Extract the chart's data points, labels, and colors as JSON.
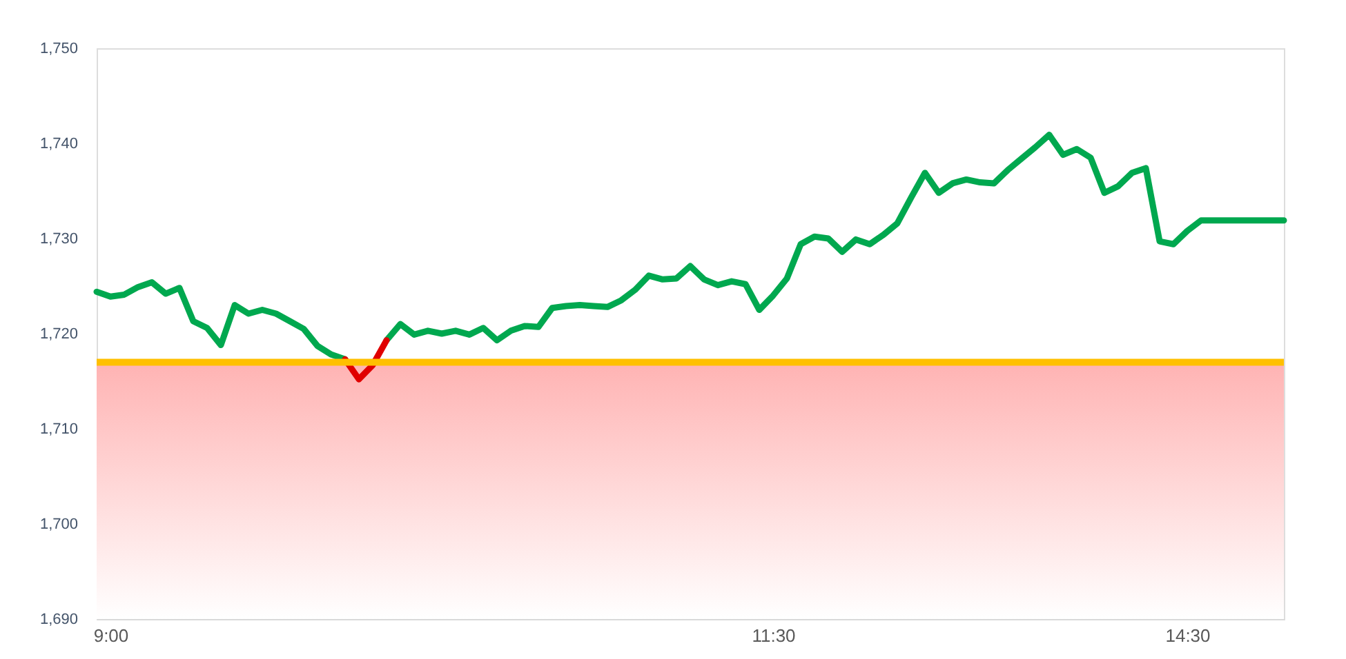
{
  "chart_data": {
    "type": "line",
    "categories": [
      null,
      "9:00",
      null,
      null,
      null,
      null,
      null,
      null,
      null,
      null,
      null,
      null,
      null,
      null,
      null,
      null,
      null,
      null,
      null,
      null,
      null,
      null,
      null,
      null,
      null,
      null,
      null,
      null,
      null,
      null,
      null,
      null,
      null,
      null,
      null,
      null,
      null,
      null,
      null,
      null,
      null,
      null,
      null,
      null,
      null,
      null,
      null,
      null,
      null,
      "11:30",
      null,
      null,
      null,
      null,
      null,
      null,
      null,
      null,
      null,
      null,
      null,
      null,
      null,
      null,
      null,
      null,
      null,
      null,
      null,
      null,
      null,
      null,
      null,
      null,
      null,
      null,
      null,
      null,
      null,
      "14:30",
      null,
      null,
      null,
      null,
      null,
      null,
      null
    ],
    "series": [
      {
        "color": "#00a84f",
        "values": [
          1724.4,
          1723.9,
          1724.1,
          1724.9,
          1725.4,
          1724.2,
          1724.8,
          1721.3,
          1720.6,
          1718.8,
          1723.0,
          1722.1,
          1722.5,
          1722.1,
          1721.3,
          1720.5,
          1718.7,
          1717.8,
          1717.3,
          null,
          null,
          1719.3,
          1721.0,
          1719.9,
          1720.3,
          1720.0,
          1720.3,
          1719.9,
          1720.6,
          1719.3,
          1720.3,
          1720.8,
          1720.7,
          1722.7,
          1722.9,
          1723.0,
          1722.9,
          1722.8,
          1723.5,
          1724.6,
          1726.1,
          1725.7,
          1725.8,
          1727.1,
          1725.7,
          1725.1,
          1725.5,
          1725.2,
          1722.5,
          1724.0,
          1725.8,
          1729.4,
          1730.2,
          1730.0,
          1728.6,
          1729.9,
          1729.4,
          1730.4,
          1731.6,
          1734.3,
          1736.9,
          1734.8,
          1735.8,
          1736.2,
          1735.9,
          1735.8,
          1737.2,
          1738.4,
          1739.6,
          1740.9,
          1738.8,
          1739.4,
          1738.5,
          1734.8,
          1735.5,
          1736.9,
          1737.4,
          1729.7,
          1729.4,
          1730.8,
          1731.9,
          1731.9,
          1731.9,
          1731.9,
          1731.9,
          1731.9,
          1731.9
        ]
      },
      {
        "color": "#e00000",
        "values": [
          null,
          null,
          null,
          null,
          null,
          null,
          null,
          null,
          null,
          null,
          null,
          null,
          null,
          null,
          null,
          null,
          null,
          null,
          1717.3,
          1715.2,
          1716.7,
          1719.3,
          null,
          null,
          null,
          null,
          null,
          null,
          null,
          null,
          null,
          null,
          null,
          null,
          null,
          null,
          null,
          null,
          null,
          null,
          null,
          null,
          null,
          null,
          null,
          null,
          null,
          null,
          null,
          null,
          null,
          null,
          null,
          null,
          null,
          null,
          null,
          null,
          null,
          null,
          null,
          null,
          null,
          null,
          null,
          null,
          null,
          null,
          null,
          null,
          null,
          null,
          null,
          null,
          null,
          null,
          null,
          null,
          null,
          null,
          null,
          null,
          null,
          null,
          null,
          null,
          null
        ]
      }
    ],
    "ylim": [
      1690,
      1750
    ],
    "yticks": [
      {
        "value": 1690,
        "label": "1,690"
      },
      {
        "value": 1700,
        "label": "1,700"
      },
      {
        "value": 1710,
        "label": "1,710"
      },
      {
        "value": 1720,
        "label": "1,720"
      },
      {
        "value": 1730,
        "label": "1,730"
      },
      {
        "value": 1740,
        "label": "1,740"
      },
      {
        "value": 1750,
        "label": "1,750"
      }
    ],
    "ref_lines": [
      {
        "axis": "y",
        "value": 1717,
        "color": "#ffc000"
      }
    ],
    "bands": [
      {
        "axis": "y",
        "from": 1690,
        "to": 1717,
        "color": "#ffb3b3"
      }
    ],
    "line_style": "solid"
  }
}
